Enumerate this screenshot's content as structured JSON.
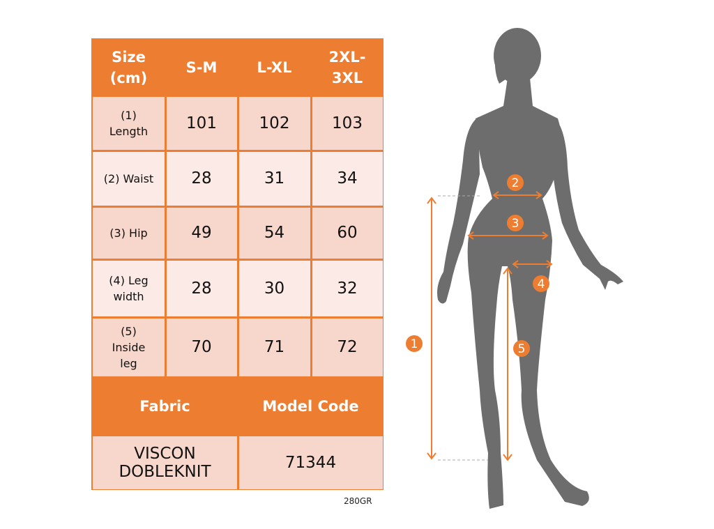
{
  "table": {
    "header": [
      "Size\n(cm)",
      "S-M",
      "L-XL",
      "2XL-\n3XL"
    ],
    "rows": [
      {
        "label": "(1)\nLength",
        "values": [
          "101",
          "102",
          "103"
        ]
      },
      {
        "label": "(2) Waist",
        "values": [
          "28",
          "31",
          "34"
        ]
      },
      {
        "label": "(3) Hip",
        "values": [
          "49",
          "54",
          "60"
        ]
      },
      {
        "label": "(4) Leg\nwidth",
        "values": [
          "28",
          "30",
          "32"
        ]
      },
      {
        "label": "(5)\nInside\nleg",
        "values": [
          "70",
          "71",
          "72"
        ]
      }
    ],
    "fabric_header": "Fabric",
    "model_code_header": "Model Code",
    "fabric": "VISCON\nDOBLEKNIT",
    "model_code": "71344"
  },
  "footnote": "280GR",
  "markers": [
    "1",
    "2",
    "3",
    "4",
    "5"
  ],
  "colors": {
    "accent": "#ed7d31",
    "silhouette": "#6d6d6d",
    "row_dark": "#f7d6cb",
    "row_light": "#fbeae5"
  }
}
